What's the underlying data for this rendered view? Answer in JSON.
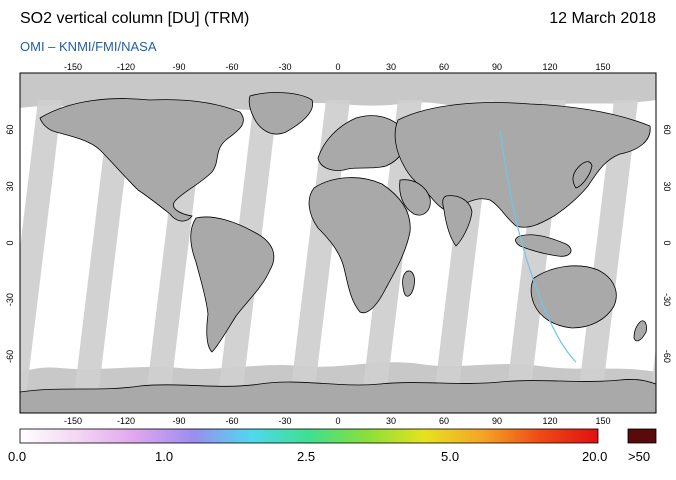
{
  "header": {
    "title": "SO2 vertical column [DU] (TRM)",
    "date": "12 March 2018",
    "credit": "OMI  –  KNMI/FMI/NASA"
  },
  "map": {
    "lon_ticks": [
      "-150",
      "-120",
      "-90",
      "-60",
      "-30",
      "0",
      "30",
      "60",
      "90",
      "120",
      "150"
    ],
    "lat_ticks": [
      "60",
      "30",
      "0",
      "-30",
      "-60"
    ],
    "colors": {
      "land": "#a9a9a9",
      "gap_swath": "#d0d0d0",
      "no_data": "#c8c8c8",
      "coast": "#000000"
    }
  },
  "colorbar": {
    "labels": [
      "0.0",
      "1.0",
      "2.5",
      "5.0",
      "20.0",
      ">50"
    ],
    "colors": [
      "#ffffff",
      "#f3d6f3",
      "#e0a6ee",
      "#9c8df0",
      "#4fd8f0",
      "#3ee08f",
      "#88e03a",
      "#e6e21e",
      "#f4a526",
      "#ee4a14",
      "#e11010"
    ],
    "overflow_color": "#5a0a0a"
  }
}
